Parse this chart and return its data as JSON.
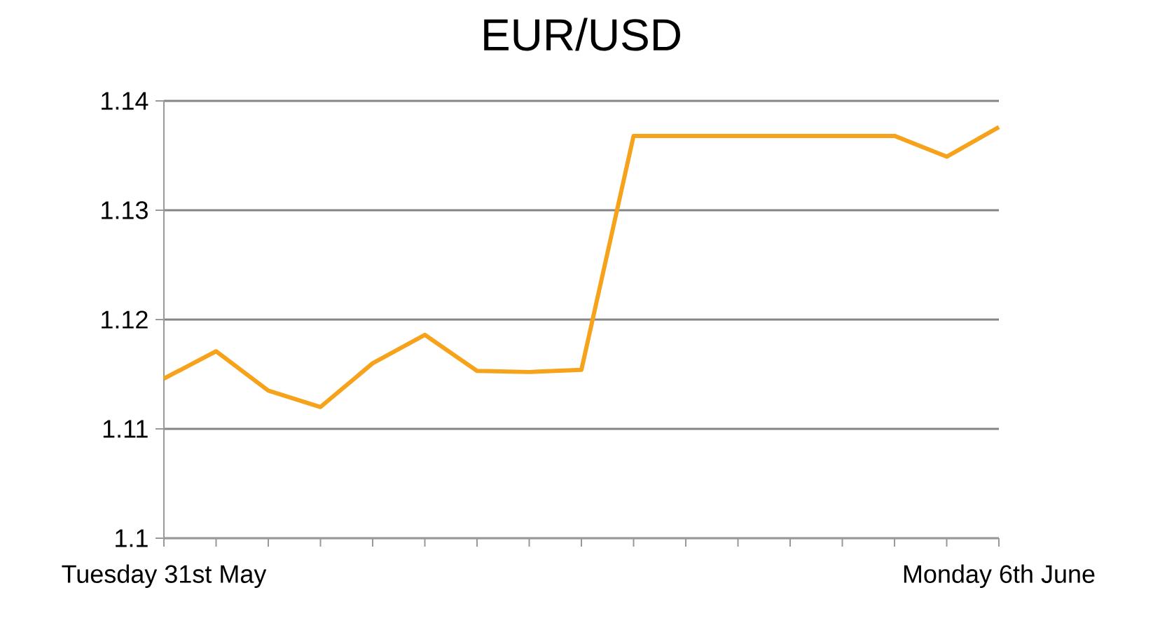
{
  "chart_data": {
    "type": "line",
    "title": "EUR/USD",
    "categories": [
      "Tuesday 31st May",
      null,
      null,
      null,
      null,
      null,
      null,
      null,
      null,
      null,
      null,
      null,
      null,
      null,
      null,
      null,
      "Monday 6th June"
    ],
    "series": [
      {
        "color": "#f7a21b",
        "values": [
          1.1146,
          1.1171,
          1.1135,
          1.112,
          1.116,
          1.1186,
          1.1153,
          1.1152,
          1.1154,
          1.1368,
          1.1368,
          1.1368,
          1.1368,
          1.1368,
          1.1368,
          1.1349,
          1.1376
        ]
      }
    ],
    "ylim": [
      1.1,
      1.14
    ],
    "yticks": [
      1.1,
      1.11,
      1.12,
      1.13,
      1.14
    ],
    "grid": "y",
    "legend": false,
    "marker": "none",
    "line_style": "solid"
  }
}
